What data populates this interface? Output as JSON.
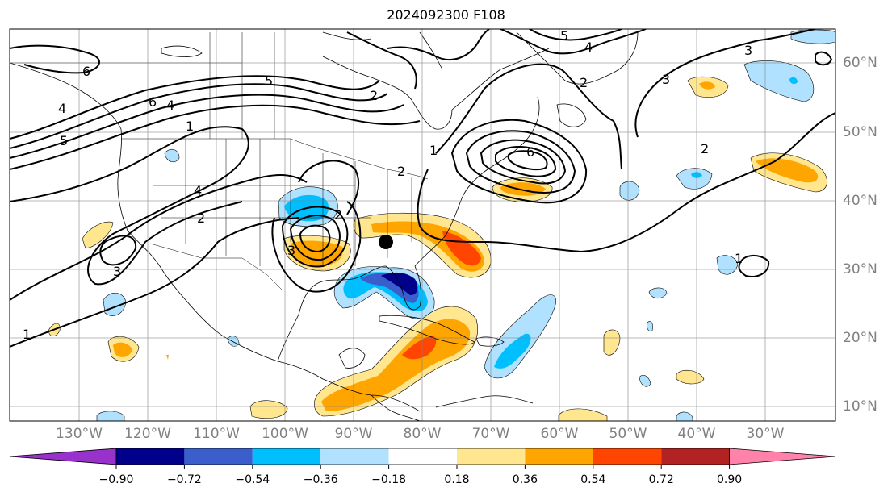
{
  "title": "2024092300 F108",
  "lon_labels": [
    "130°W",
    "120°W",
    "110°W",
    "100°W",
    "90°W",
    "80°W",
    "70°W",
    "60°W",
    "50°W",
    "40°W",
    "30°W"
  ],
  "lat_labels": [
    "60°N",
    "50°N",
    "40°N",
    "30°N",
    "20°N",
    "10°N"
  ],
  "contour_labels": [
    "6",
    "4",
    "1",
    "5",
    "4",
    "6",
    "5",
    "3",
    "2",
    "4",
    "2",
    "2",
    "2",
    "1",
    "3",
    "5",
    "4",
    "6",
    "3",
    "2",
    "2",
    "1",
    "3",
    "1"
  ],
  "colorbar": {
    "tick_labels": [
      "−0.90",
      "−0.72",
      "−0.54",
      "−0.36",
      "−0.18",
      "0.18",
      "0.36",
      "0.54",
      "0.72",
      "0.90"
    ],
    "colors": [
      "#9932cc",
      "#00008b",
      "#3a5fcd",
      "#00bfff",
      "#b0e2ff",
      "#ffffff",
      "#ffe68f",
      "#ffa500",
      "#ff4500",
      "#b22222",
      "#ff82ab"
    ]
  },
  "map_colors": {
    "neg_light": "#b0e2ff",
    "neg_mid": "#00bfff",
    "neg_strong": "#3a5fcd",
    "neg_darkest": "#00008b",
    "pos_light": "#ffe68f",
    "pos_mid": "#ffa500",
    "pos_strong": "#ff4500"
  },
  "marker_icon": "black-dot"
}
